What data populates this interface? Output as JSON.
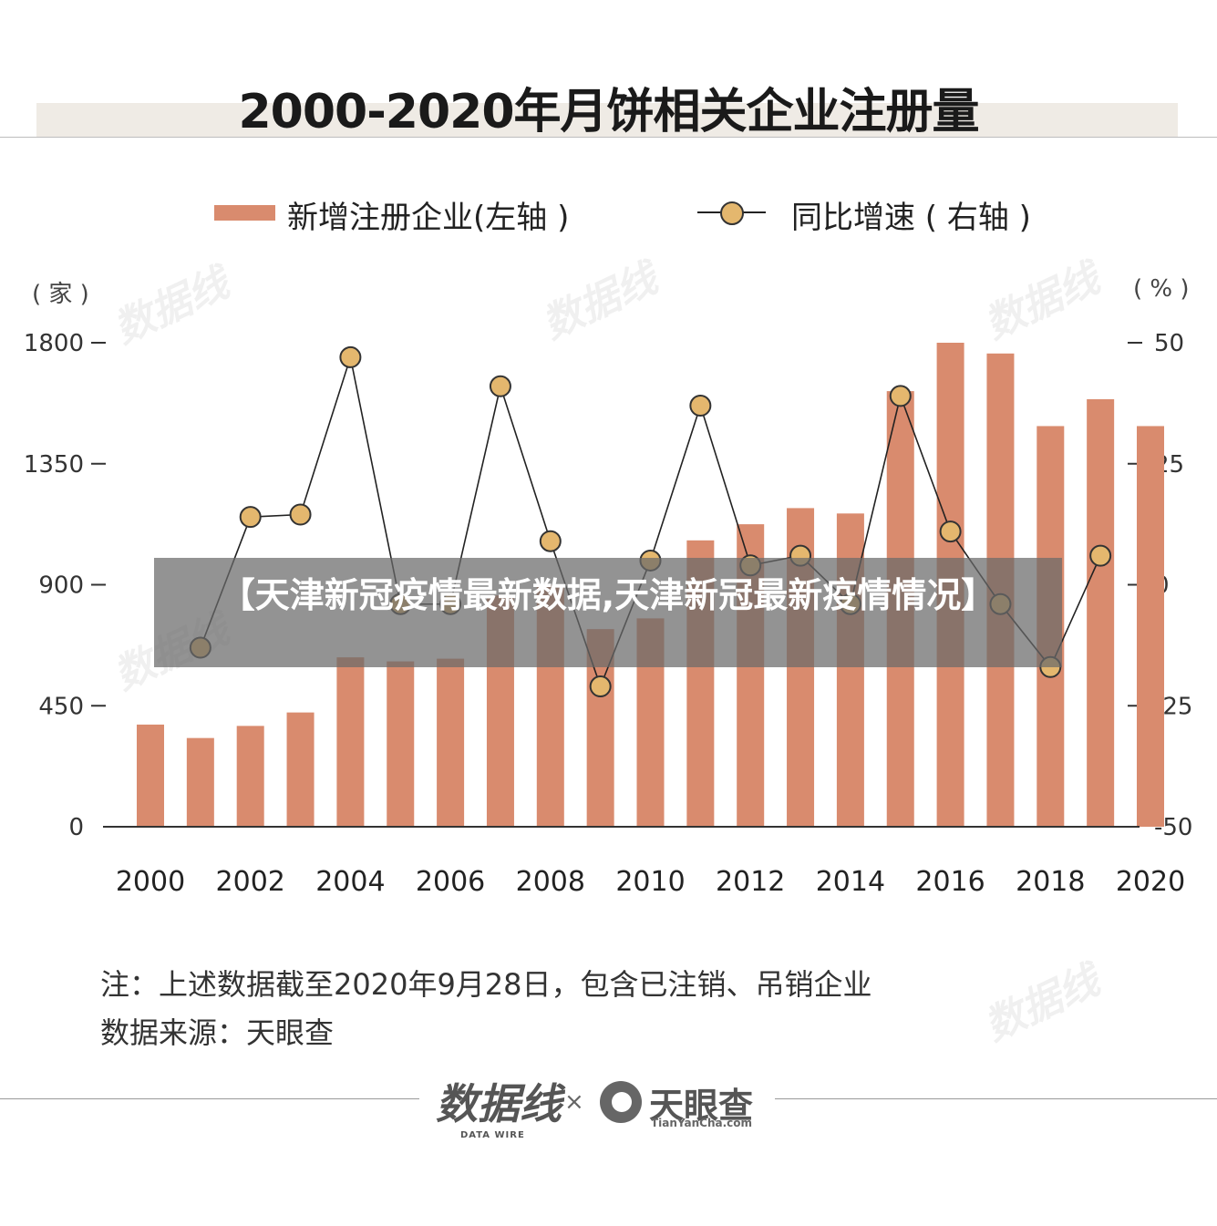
{
  "title": "2000-2020年月饼相关企业注册量",
  "legend": {
    "bar_label": "新增注册企业(左轴 )",
    "line_label": "同比增速 ( 右轴 )"
  },
  "units": {
    "left": "( 家 )",
    "right": "( % )"
  },
  "banner": "【天津新冠疫情最新数据,天津新冠最新疫情情况】",
  "notes": {
    "line1": "注：上述数据截至2020年9月28日，包含已注销、吊销企业",
    "line2": "数据来源：天眼查"
  },
  "footer": {
    "logo_dw": "数据线",
    "logo_dw_sub": "DATA WIRE",
    "logo_sep": "×",
    "logo_ty": "天眼查",
    "logo_ty_sub": "TianYanCha.com"
  },
  "watermark": "数据线",
  "colors": {
    "bar": "#d98b6e",
    "dot": "#e4b76e",
    "line": "#222222"
  },
  "chart_data": {
    "type": "bar+line",
    "categories": [
      "2000",
      "2001",
      "2002",
      "2003",
      "2004",
      "2005",
      "2006",
      "2007",
      "2008",
      "2009",
      "2010",
      "2011",
      "2012",
      "2013",
      "2014",
      "2015",
      "2016",
      "2017",
      "2018",
      "2019",
      "2020"
    ],
    "x_tick_labels": [
      "2000",
      "2002",
      "2004",
      "2006",
      "2008",
      "2010",
      "2012",
      "2014",
      "2016",
      "2018",
      "2020"
    ],
    "series": [
      {
        "name": "新增注册企业(左轴 )",
        "type": "bar",
        "axis": "left",
        "values": [
          380,
          330,
          375,
          425,
          630,
          615,
          625,
          860,
          900,
          735,
          775,
          1065,
          1125,
          1185,
          1165,
          1620,
          1800,
          1760,
          1490,
          1590,
          1490
        ]
      },
      {
        "name": "同比增速 ( 右轴 )",
        "type": "line",
        "axis": "right",
        "values": [
          null,
          -13,
          14,
          14.5,
          47,
          -4,
          -4,
          41,
          9,
          -21,
          5,
          37,
          4,
          6,
          -4,
          39,
          11,
          -4,
          -17,
          6,
          null
        ]
      }
    ],
    "y_left": {
      "ticks": [
        0,
        450,
        900,
        1350,
        1800
      ],
      "ylim": [
        0,
        1800
      ]
    },
    "y_right": {
      "ticks": [
        -50,
        -25,
        0,
        25,
        50
      ],
      "ylim": [
        -50,
        50
      ]
    }
  }
}
